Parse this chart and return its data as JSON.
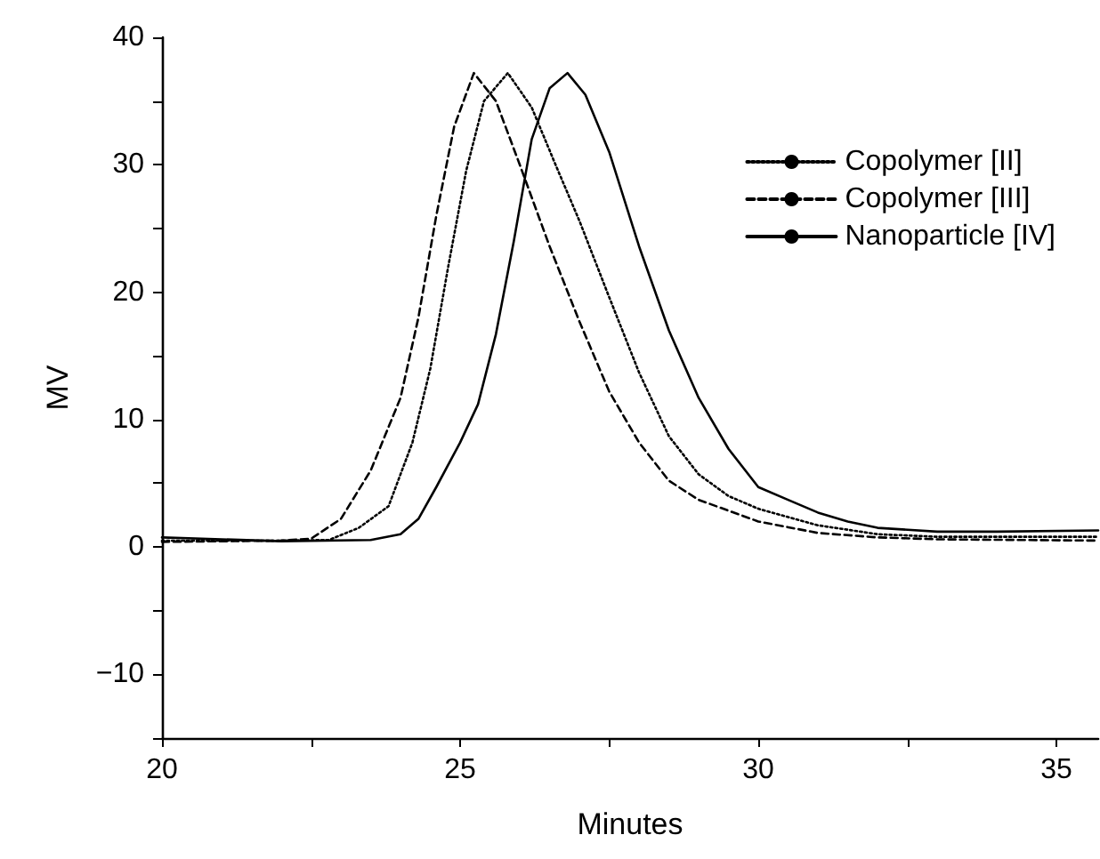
{
  "chart_data": {
    "type": "line",
    "xlabel": "Minutes",
    "ylabel": "MV",
    "xlim": [
      20,
      35.7
    ],
    "ylim": [
      -15,
      40
    ],
    "xticks": [
      20,
      {
        "value": 22.5,
        "label": null
      },
      25,
      {
        "value": 27.5,
        "label": null
      },
      30,
      {
        "value": 32.5,
        "label": null
      },
      35
    ],
    "yticks": [
      {
        "value": -15,
        "label": null
      },
      {
        "value": -10,
        "label": "−10"
      },
      {
        "value": -5,
        "label": null
      },
      0,
      {
        "value": 5,
        "label": null
      },
      10,
      {
        "value": 15,
        "label": null
      },
      20,
      {
        "value": 25,
        "label": null
      },
      30,
      {
        "value": 35,
        "label": null
      },
      40
    ],
    "grid": false,
    "legend": "top right",
    "marker": "none",
    "series": [
      {
        "name": "Copolymer [II]",
        "color": "#000000",
        "line_style": "dotted",
        "x": [
          20,
          22,
          22.8,
          23.3,
          23.8,
          24.2,
          24.5,
          24.8,
          25.1,
          25.4,
          25.8,
          26.2,
          26.6,
          27,
          27.5,
          28,
          28.5,
          29,
          29.5,
          30,
          31,
          32,
          33,
          35.7
        ],
        "values": [
          0.5,
          0.5,
          0.55,
          1.5,
          3.2,
          8.2,
          14,
          22,
          29.5,
          35,
          37.2,
          34.5,
          30,
          25.6,
          19.6,
          13.7,
          8.7,
          5.7,
          4,
          3,
          1.7,
          1,
          0.8,
          0.8
        ]
      },
      {
        "name": "Copolymer [III]",
        "color": "#000000",
        "line_style": "dashed",
        "x": [
          20,
          22,
          22.5,
          23,
          23.5,
          24,
          24.3,
          24.6,
          24.9,
          25.23,
          25.6,
          26,
          26.5,
          27,
          27.5,
          28,
          28.5,
          29,
          30,
          31,
          32,
          33,
          35.7
        ],
        "values": [
          0.4,
          0.5,
          0.65,
          2.2,
          6,
          11.7,
          18,
          26,
          33,
          37.2,
          35,
          30,
          23.6,
          17.7,
          12.2,
          8.2,
          5.2,
          3.7,
          2,
          1.1,
          0.75,
          0.6,
          0.5
        ]
      },
      {
        "name": "Nanoparticle [IV]",
        "color": "#000000",
        "line_style": "solid",
        "x": [
          20,
          21,
          22,
          23.5,
          24,
          24.3,
          24.6,
          25,
          25.3,
          25.6,
          25.9,
          26.2,
          26.5,
          26.8,
          27.1,
          27.5,
          28,
          28.5,
          29,
          29.5,
          30,
          30.5,
          31,
          31.5,
          32,
          33,
          34,
          35.7
        ],
        "values": [
          0.75,
          0.6,
          0.45,
          0.55,
          1,
          2.2,
          4.7,
          8.2,
          11.2,
          16.7,
          24,
          32,
          36,
          37.2,
          35.5,
          31,
          23.6,
          17,
          11.7,
          7.7,
          4.7,
          3.7,
          2.7,
          2,
          1.5,
          1.2,
          1.2,
          1.3
        ]
      }
    ]
  }
}
